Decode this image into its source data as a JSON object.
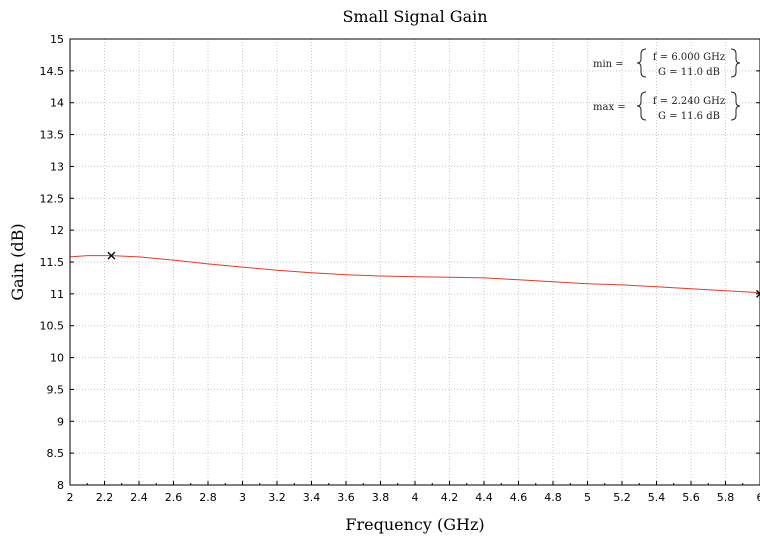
{
  "chart_data": {
    "type": "line",
    "title": "Small Signal Gain",
    "xlabel": "Frequency (GHz)",
    "ylabel": "Gain (dB)",
    "xlim": [
      2,
      6
    ],
    "ylim": [
      8,
      15
    ],
    "x_ticks": [
      "2",
      "2.2",
      "2.4",
      "2.6",
      "2.8",
      "3",
      "3.2",
      "3.4",
      "3.6",
      "3.8",
      "4",
      "4.2",
      "4.4",
      "4.6",
      "4.8",
      "5",
      "5.2",
      "5.4",
      "5.6",
      "5.8",
      "6"
    ],
    "y_ticks": [
      "8",
      "8.5",
      "9",
      "9.5",
      "10",
      "10.5",
      "11",
      "11.5",
      "12",
      "12.5",
      "13",
      "13.5",
      "14",
      "14.5",
      "15"
    ],
    "grid": true,
    "series": [
      {
        "color": "#e8392b",
        "x": [
          2.0,
          2.1,
          2.24,
          2.4,
          2.6,
          2.8,
          3.0,
          3.2,
          3.4,
          3.6,
          3.8,
          4.0,
          4.2,
          4.4,
          4.6,
          4.8,
          5.0,
          5.2,
          5.4,
          5.6,
          5.8,
          6.0
        ],
        "y": [
          11.58,
          11.6,
          11.6,
          11.58,
          11.53,
          11.47,
          11.42,
          11.37,
          11.33,
          11.3,
          11.28,
          11.27,
          11.26,
          11.25,
          11.22,
          11.19,
          11.16,
          11.14,
          11.11,
          11.08,
          11.05,
          11.02
        ]
      }
    ],
    "markers": [
      {
        "x": 2.24,
        "y": 11.6,
        "symbol": "x"
      },
      {
        "x": 6.0,
        "y": 11.0,
        "symbol": "x"
      }
    ],
    "annotations": [
      {
        "label": "min =",
        "f": "f = 6.000 GHz",
        "g": "G = 11.0 dB"
      },
      {
        "label": "max =",
        "f": "f = 2.240 GHz",
        "g": "G = 11.6 dB"
      }
    ]
  }
}
